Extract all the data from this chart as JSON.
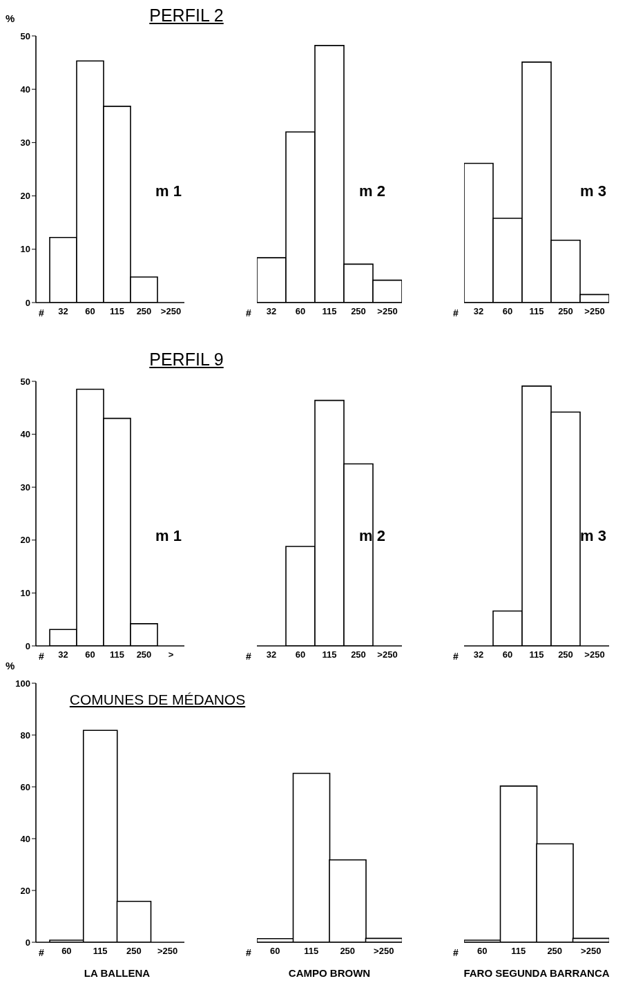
{
  "chart_data": [
    {
      "type": "bar",
      "title": "PERFIL 2",
      "ylabel": "%",
      "categories": [
        "32",
        "60",
        "115",
        "250",
        ">250"
      ],
      "values": [
        12.2,
        45.3,
        36.8,
        4.8,
        0
      ],
      "color": "#ffffff",
      "ylim": [
        0,
        50
      ],
      "yticks": [
        0,
        10,
        20,
        30,
        40,
        50
      ],
      "annotations": [
        "#",
        "m 1"
      ]
    },
    {
      "type": "bar",
      "categories": [
        "32",
        "60",
        "115",
        "250",
        ">250"
      ],
      "values": [
        8.4,
        32,
        48.2,
        7.2,
        4.2
      ],
      "color": "#ffffff",
      "ylim": [
        0,
        50
      ],
      "yticks": [
        0,
        10,
        20,
        30,
        40,
        50
      ],
      "tick_labels": "x",
      "annotations": [
        "#",
        "m 2"
      ]
    },
    {
      "type": "bar",
      "categories": [
        "32",
        "60",
        "115",
        "250",
        ">250"
      ],
      "values": [
        26.1,
        15.8,
        45.1,
        11.7,
        1.5
      ],
      "color": "#ffffff",
      "ylim": [
        0,
        50
      ],
      "yticks": [
        0,
        10,
        20,
        30,
        40,
        50
      ],
      "tick_labels": "x",
      "annotations": [
        "#",
        "m 3"
      ]
    },
    {
      "type": "bar",
      "title": "PERFIL 9",
      "categories": [
        "32",
        "60",
        "115",
        "250",
        ">"
      ],
      "values": [
        3.1,
        48.5,
        43,
        4.2,
        0
      ],
      "color": "#ffffff",
      "ylim": [
        0,
        50
      ],
      "yticks": [
        0,
        10,
        20,
        30,
        40,
        50
      ],
      "annotations": [
        "#",
        "m 1"
      ]
    },
    {
      "type": "bar",
      "categories": [
        "32",
        "60",
        "115",
        "250",
        ">250"
      ],
      "values": [
        0,
        18.8,
        46.4,
        34.4,
        0
      ],
      "color": "#ffffff",
      "ylim": [
        0,
        50
      ],
      "yticks": [
        0,
        10,
        20,
        30,
        40,
        50
      ],
      "tick_labels": "x",
      "annotations": [
        "#",
        "m 2"
      ]
    },
    {
      "type": "bar",
      "categories": [
        "32",
        "60",
        "115",
        "250",
        ">250"
      ],
      "values": [
        0,
        6.6,
        49.1,
        44.2,
        0
      ],
      "color": "#ffffff",
      "ylim": [
        0,
        50
      ],
      "yticks": [
        0,
        10,
        20,
        30,
        40,
        50
      ],
      "tick_labels": "x",
      "annotations": [
        "#",
        "m 3"
      ]
    },
    {
      "type": "bar",
      "title": "COMUNES DE MÉDANOS",
      "ylabel": "%",
      "xlabel": "LA BALLENA",
      "categories": [
        "60",
        "115",
        "250",
        ">250"
      ],
      "values": [
        0.8,
        81.8,
        15.8,
        0
      ],
      "color": "#ffffff",
      "ylim": [
        0,
        100
      ],
      "yticks": [
        0,
        20,
        40,
        60,
        80,
        100
      ],
      "annotations": [
        "#"
      ]
    },
    {
      "type": "bar",
      "xlabel": "CAMPO BROWN",
      "categories": [
        "60",
        "115",
        "250",
        ">250"
      ],
      "values": [
        1.4,
        65.2,
        31.8,
        1.5
      ],
      "color": "#ffffff",
      "ylim": [
        0,
        100
      ],
      "yticks": [
        0,
        20,
        40,
        60,
        80,
        100
      ],
      "tick_labels": "x",
      "annotations": [
        "#"
      ]
    },
    {
      "type": "bar",
      "xlabel": "FARO SEGUNDA BARRANCA",
      "categories": [
        "60",
        "115",
        "250",
        ">250"
      ],
      "values": [
        0.8,
        60.3,
        38,
        1.5
      ],
      "color": "#ffffff",
      "ylim": [
        0,
        100
      ],
      "yticks": [
        0,
        20,
        40,
        60,
        80,
        100
      ],
      "tick_labels": "x",
      "annotations": [
        "#"
      ]
    }
  ]
}
